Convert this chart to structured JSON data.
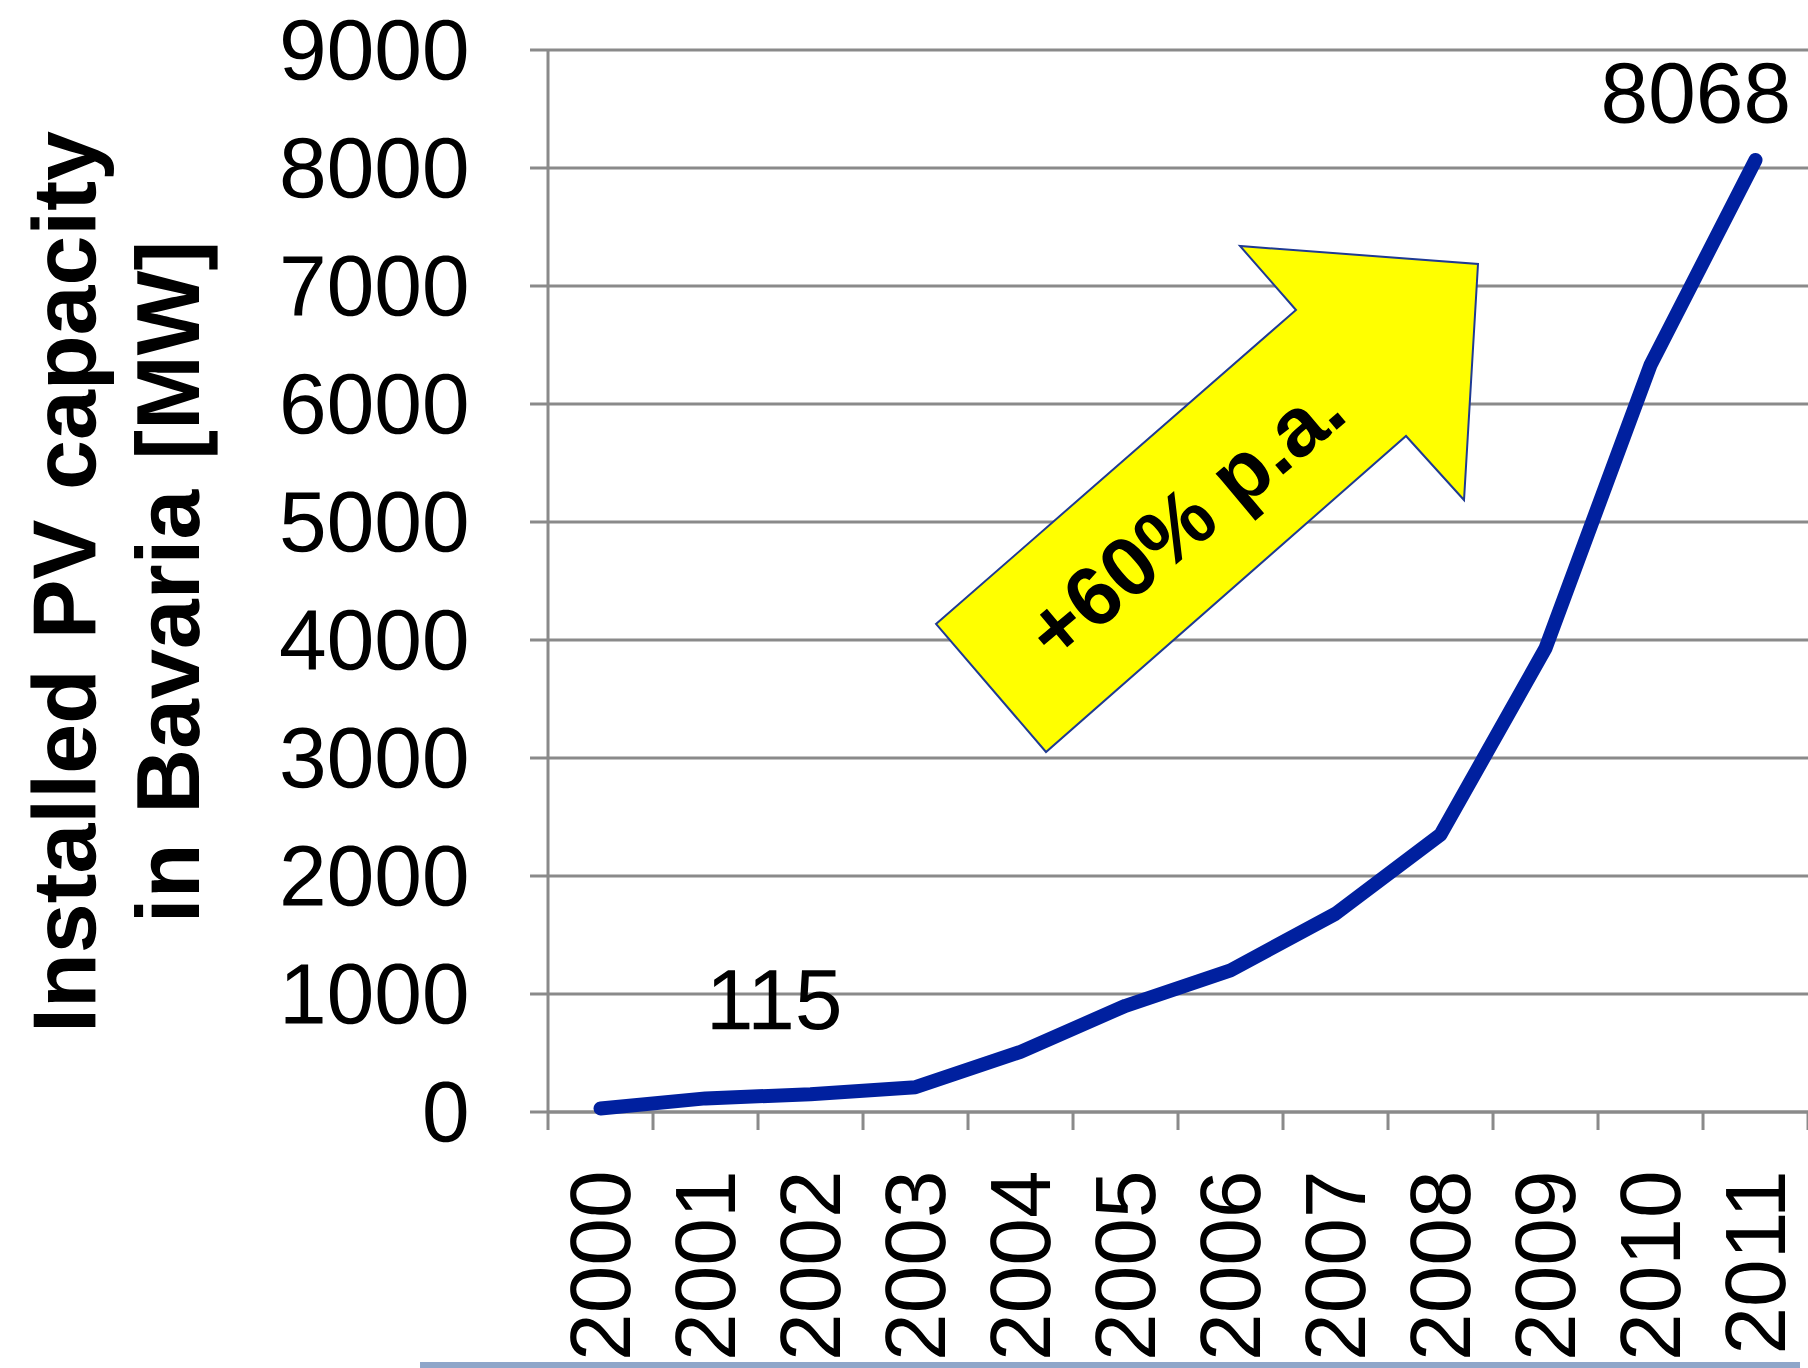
{
  "chart_data": {
    "type": "line",
    "ylabel": "Installed PV capacity in Bavaria [MW]",
    "categories": [
      "2000",
      "2001",
      "2002",
      "2003",
      "2004",
      "2005",
      "2006",
      "2007",
      "2008",
      "2009",
      "2010",
      "2011"
    ],
    "values": [
      30,
      115,
      150,
      210,
      510,
      900,
      1200,
      1680,
      2350,
      3930,
      6330,
      8068
    ],
    "value_labels": [
      null,
      "115",
      null,
      null,
      null,
      null,
      null,
      null,
      null,
      null,
      null,
      "8068"
    ],
    "color": "#00209f",
    "ylim": [
      0,
      9000
    ],
    "yticks": [
      0,
      1000,
      2000,
      3000,
      4000,
      5000,
      6000,
      7000,
      8000,
      9000
    ],
    "grid": "y",
    "annotations": [
      "+60% p.a."
    ]
  }
}
